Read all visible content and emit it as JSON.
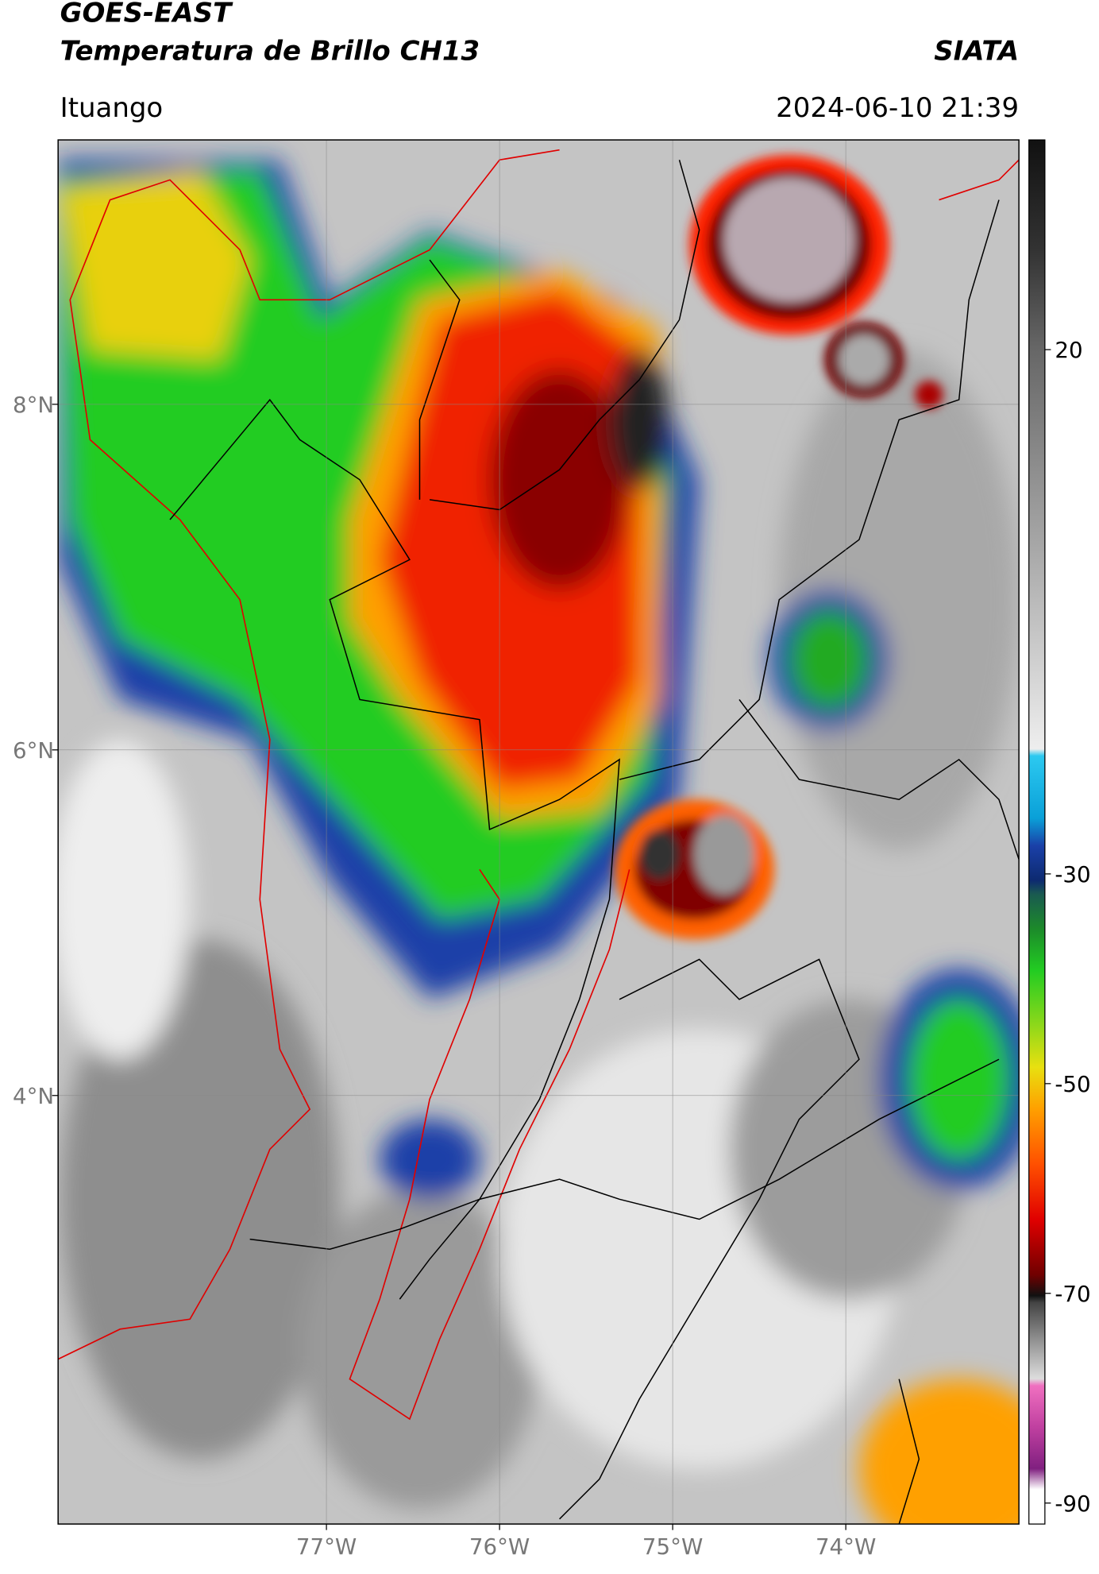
{
  "chart_data": {
    "type": "map",
    "title": "GOES-EAST",
    "subtitle": "Temperatura de Brillo CH13",
    "source": "SIATA",
    "location": "Ituango",
    "datetime": "2024-06-10 21:39",
    "xlim": [
      -78.55,
      -73.0
    ],
    "ylim": [
      1.52,
      9.53
    ],
    "xticks": [
      {
        "value": -77,
        "label": "77°W"
      },
      {
        "value": -76,
        "label": "76°W"
      },
      {
        "value": -75,
        "label": "75°W"
      },
      {
        "value": -74,
        "label": "74°W"
      }
    ],
    "yticks": [
      {
        "value": 4,
        "label": "4°N"
      },
      {
        "value": 6,
        "label": "6°N"
      },
      {
        "value": 8,
        "label": "8°N"
      }
    ],
    "grid": true,
    "colorbar": {
      "clim": [
        -92,
        40
      ],
      "ticks": [
        -90,
        -70,
        -50,
        -30,
        20
      ]
    }
  }
}
